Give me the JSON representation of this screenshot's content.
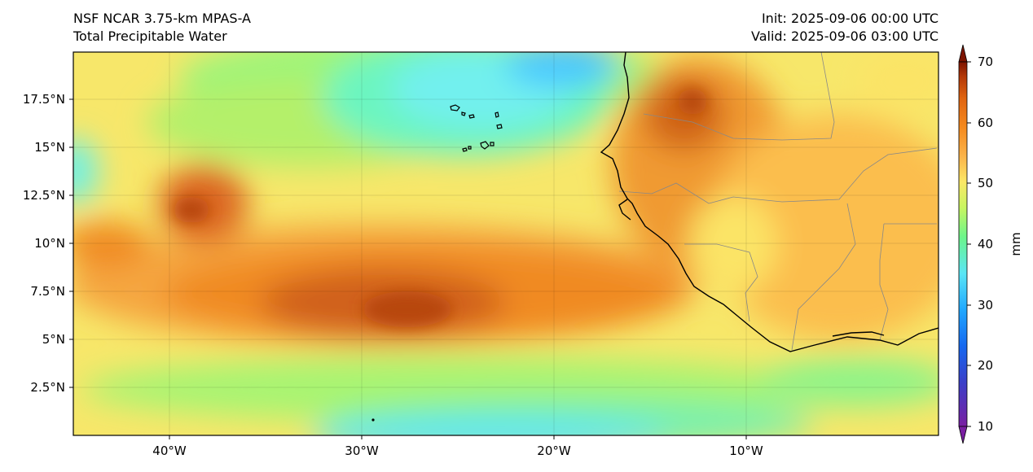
{
  "header": {
    "model": "NSF NCAR 3.75-km MPAS-A",
    "field": "Total Precipitable Water",
    "init": "Init: 2025-09-06 00:00 UTC",
    "valid": "Valid: 2025-09-06 03:00 UTC"
  },
  "map": {
    "region": "Tropical eastern Atlantic and West Africa",
    "lon_range": [
      -45,
      0
    ],
    "lat_range": [
      0,
      20
    ],
    "x_ticks": [
      "40°W",
      "30°W",
      "20°W",
      "10°W"
    ],
    "y_ticks": [
      "2.5°N",
      "5°N",
      "7.5°N",
      "10°N",
      "12.5°N",
      "15°N",
      "17.5°N"
    ]
  },
  "colorbar": {
    "label": "mm",
    "ticks": [
      "10",
      "20",
      "30",
      "40",
      "50",
      "60",
      "70"
    ],
    "range": [
      10,
      70
    ],
    "colors": [
      "#7a1fa2",
      "#3b3fc8",
      "#1668f0",
      "#20a8ff",
      "#5ae6f5",
      "#6cf58a",
      "#c8f560",
      "#fbe866",
      "#fbb44a",
      "#f58a1e",
      "#e06410",
      "#b43808",
      "#7d1400"
    ]
  }
}
